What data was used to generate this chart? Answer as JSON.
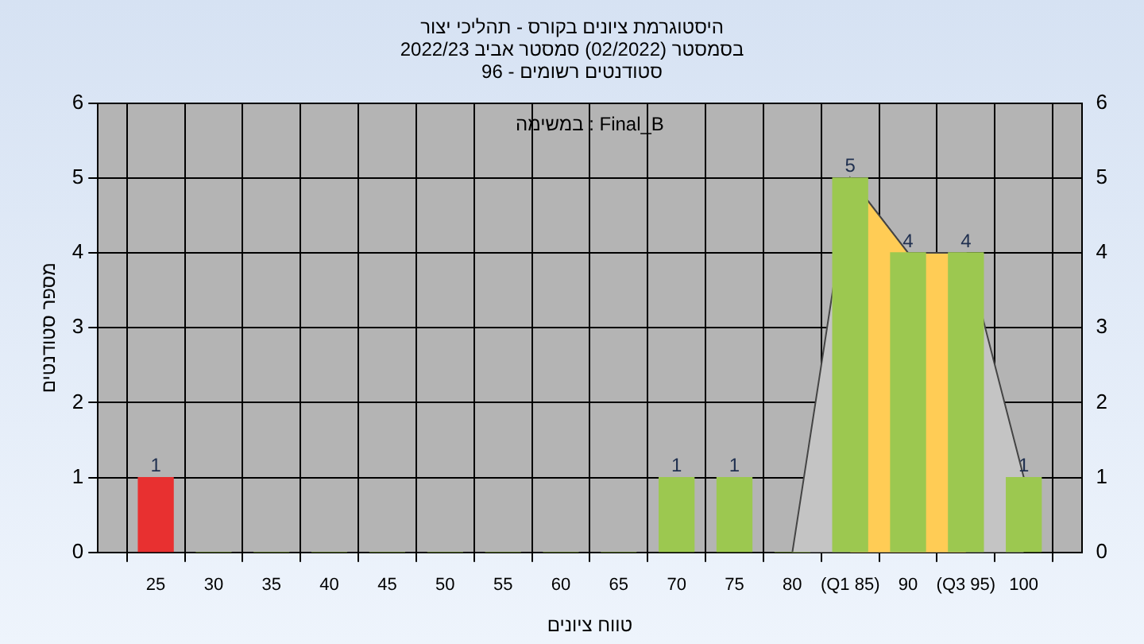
{
  "chart_data": {
    "type": "bar",
    "title": "היסטוגרמת ציונים בקורס - תהליכי יצור",
    "subtitle": "בסמסטר  (02/2022)  סמסטר אביב 2022/23\nסטודנטים רשומים - 96",
    "xlabel": "טווח ציונים",
    "ylabel": "מספר סטודנטים",
    "annotations": [
      "Final_B : במשימה"
    ],
    "xlim": [
      20,
      105
    ],
    "xticks": [
      25,
      30,
      35,
      40,
      45,
      50,
      55,
      60,
      65,
      70,
      75,
      80,
      {
        "value": 85,
        "label": "(Q1 85)"
      },
      90,
      {
        "value": 95,
        "label": "(Q3 95)"
      },
      100
    ],
    "ylim": [
      0,
      6
    ],
    "yticks": [
      0,
      1,
      2,
      3,
      4,
      5,
      6
    ],
    "y2lim": [
      0,
      6
    ],
    "y2ticks": [
      0,
      1,
      2,
      3,
      4,
      5,
      6
    ],
    "grid": true,
    "series": [
      {
        "type": "area",
        "color": "#c4c4c4",
        "x": [
          80,
          85,
          90,
          95,
          100
        ],
        "values": [
          0,
          5,
          4,
          4,
          1
        ]
      },
      {
        "type": "area",
        "color": "#ffcc55",
        "x": [
          85,
          90,
          95
        ],
        "values": [
          5,
          4,
          4
        ]
      },
      {
        "x": [
          25,
          30,
          35,
          40,
          45,
          50,
          55,
          60,
          65,
          70,
          75,
          80,
          85,
          90,
          95,
          100
        ],
        "values": [
          1,
          0,
          0,
          0,
          0,
          0,
          0,
          0,
          0,
          1,
          1,
          0,
          5,
          4,
          4,
          1
        ],
        "colors": [
          "#e83030",
          "#9cc850",
          "#9cc850",
          "#9cc850",
          "#9cc850",
          "#9cc850",
          "#9cc850",
          "#9cc850",
          "#9cc850",
          "#9cc850",
          "#9cc850",
          "#9cc850",
          "#9cc850",
          "#9cc850",
          "#9cc850",
          "#9cc850"
        ],
        "value_labels": [
          "1",
          null,
          null,
          null,
          null,
          null,
          null,
          null,
          null,
          "1",
          "1",
          null,
          "5",
          "4",
          "4",
          "1"
        ]
      }
    ]
  }
}
